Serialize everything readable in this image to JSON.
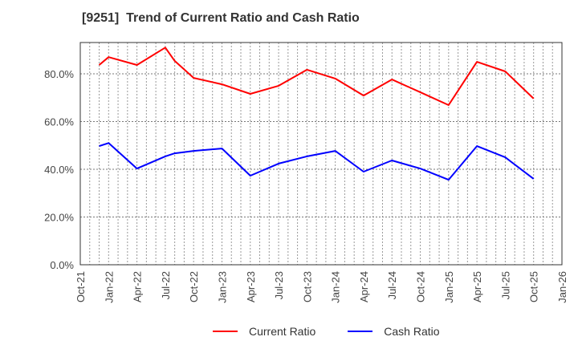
{
  "chart_data": {
    "type": "line",
    "title": "[9251]  Trend of Current Ratio and Cash Ratio",
    "xlabel": "",
    "ylabel": "",
    "ylim": [
      0,
      90
    ],
    "yticks": [
      "0.0%",
      "20.0%",
      "40.0%",
      "60.0%",
      "80.0%"
    ],
    "ytick_values": [
      0,
      20,
      40,
      60,
      80
    ],
    "xticks": [
      "Oct-21",
      "Jan-22",
      "Apr-22",
      "Jul-22",
      "Oct-22",
      "Jan-23",
      "Apr-23",
      "Jul-23",
      "Oct-23",
      "Jan-24",
      "Apr-24",
      "Jul-24",
      "Oct-24",
      "Jan-25",
      "Apr-25",
      "Jul-25",
      "Oct-25",
      "Jan-26"
    ],
    "grid": true,
    "legend_position": "bottom",
    "x": [
      "Dec-21",
      "Jan-22",
      "Apr-22",
      "Jul-22",
      "Aug-22",
      "Oct-22",
      "Jan-23",
      "Apr-23",
      "Jul-23",
      "Oct-23",
      "Jan-24",
      "Apr-24",
      "Jul-24",
      "Oct-24",
      "Jan-25",
      "Apr-25",
      "Jul-25",
      "Oct-25"
    ],
    "x_month_index": [
      2,
      3,
      6,
      9,
      10,
      12,
      15,
      18,
      21,
      24,
      27,
      30,
      33,
      36,
      39,
      42,
      45,
      48
    ],
    "series": [
      {
        "name": "Current Ratio",
        "color": "#ff0000",
        "values": [
          83.7,
          87.0,
          83.7,
          91.0,
          85.4,
          78.3,
          75.6,
          71.6,
          75.0,
          81.7,
          78.0,
          70.9,
          77.6,
          72.3,
          66.9,
          85.0,
          81.0,
          69.6
        ]
      },
      {
        "name": "Cash Ratio",
        "color": "#0000ff",
        "values": [
          49.7,
          51.0,
          40.3,
          45.4,
          46.7,
          47.7,
          48.7,
          37.3,
          42.4,
          45.4,
          47.7,
          39.0,
          43.7,
          40.3,
          35.6,
          49.7,
          45.0,
          36.0
        ]
      }
    ]
  },
  "legend": {
    "current_label": "Current Ratio",
    "cash_label": "Cash Ratio"
  }
}
